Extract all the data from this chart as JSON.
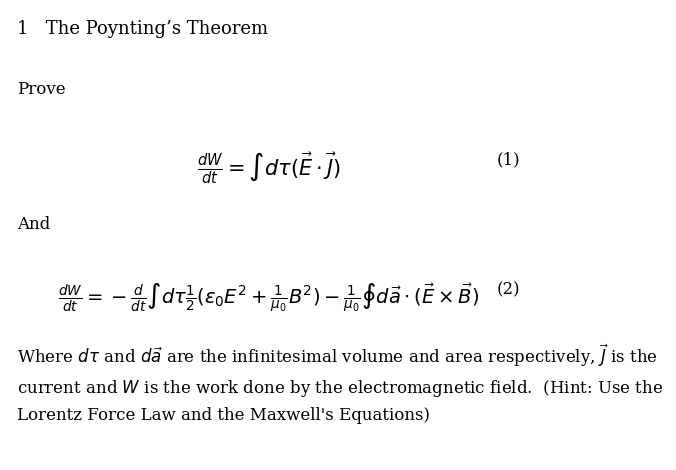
{
  "title": "1   The Poynting’s Theorem",
  "prove_label": "Prove",
  "and_label": "And",
  "eq1": "\\frac{dW}{dt} = \\int d\\tau(\\vec{E} \\cdot \\vec{J})",
  "eq1_number": "(1)",
  "eq2": "\\frac{dW}{dt} = -\\frac{d}{dt}\\int d\\tau\\frac{1}{2}(\\epsilon_0 E^2 + \\frac{1}{\\mu_0}B^2) - \\frac{1}{\\mu_0}\\oint d\\vec{a}\\cdot(\\vec{E}\\times\\vec{B})",
  "eq2_number": "(2)",
  "description": "Where $d\\tau$ and $d\\vec{a}$ are the infinitesimal volume and area respectively, $\\vec{J}$ is the\ncurrent and $W$ is the work done by the electromagnetic field.  (Hint: Use the\nLorentz Force Law and the Maxwell’s Equations)",
  "bg_color": "#ffffff",
  "text_color": "#000000",
  "fontsize_title": 13,
  "fontsize_body": 12,
  "fontsize_eq": 13,
  "fontsize_desc": 12
}
